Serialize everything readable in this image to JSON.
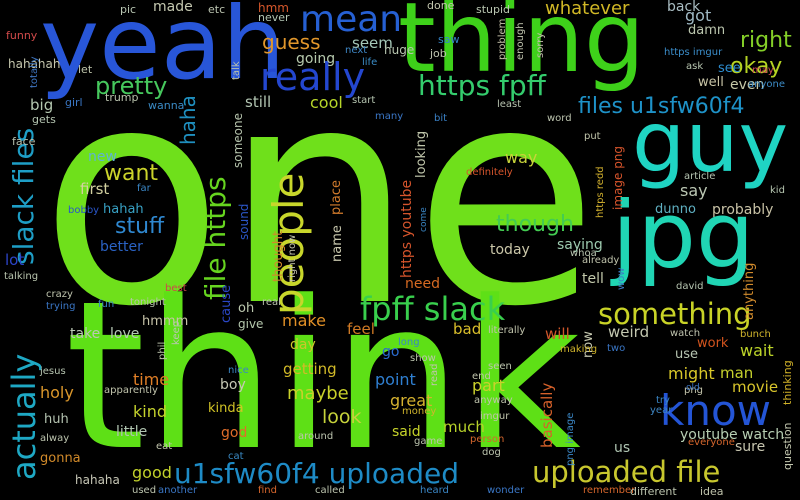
{
  "wordcloud": {
    "words": [
      {
        "text": "one",
        "color": "#6fe01b"
      },
      {
        "text": "think",
        "color": "#5ee016"
      },
      {
        "text": "thing",
        "color": "#3ed11a"
      },
      {
        "text": "yeah",
        "color": "#2856d8"
      },
      {
        "text": "guy",
        "color": "#1fd4c3"
      },
      {
        "text": "jpg",
        "color": "#20d5b4"
      },
      {
        "text": "know",
        "color": "#2455d6"
      },
      {
        "text": "mean",
        "color": "#2660d3"
      },
      {
        "text": "really",
        "color": "#2447d0"
      },
      {
        "text": "people",
        "color": "#c8d62b"
      },
      {
        "text": "actually",
        "color": "#1ea8c4"
      },
      {
        "text": "slack files",
        "color": "#1e9ec6"
      },
      {
        "text": "file https",
        "color": "#66d41f"
      },
      {
        "text": "fpff slack",
        "color": "#39cf4d"
      },
      {
        "text": "something",
        "color": "#c9d327"
      },
      {
        "text": "uploaded file",
        "color": "#c8c72e"
      },
      {
        "text": "u1sfw60f4 uploaded",
        "color": "#1e8bc6"
      },
      {
        "text": "https fpff",
        "color": "#34cc6d"
      },
      {
        "text": "files u1sfw60f4",
        "color": "#1e92c8"
      },
      {
        "text": "pretty",
        "color": "#46c85d"
      },
      {
        "text": "okay",
        "color": "#b6d423"
      },
      {
        "text": "right",
        "color": "#84cf28"
      },
      {
        "text": "guess",
        "color": "#e0962b"
      },
      {
        "text": "want",
        "color": "#cbd32b"
      },
      {
        "text": "stuff",
        "color": "#2f88d0"
      },
      {
        "text": "though",
        "color": "#43cc52"
      },
      {
        "text": "haha",
        "color": "#1f8fbf"
      },
      {
        "text": "whatever",
        "color": "#d1b826"
      },
      {
        "text": "got",
        "color": "#9fb9c4"
      },
      {
        "text": "made",
        "color": "#c4c8b0"
      },
      {
        "text": "seem",
        "color": "#a5c8b8"
      },
      {
        "text": "going",
        "color": "#b6c9ad"
      },
      {
        "text": "cool",
        "color": "#b7d62a"
      },
      {
        "text": "still",
        "color": "#b2c5b2"
      },
      {
        "text": "big",
        "color": "#b4c7b0"
      },
      {
        "text": "new",
        "color": "#5fb4d0"
      },
      {
        "text": "first",
        "color": "#d3d1a0"
      },
      {
        "text": "hahah",
        "color": "#38a1c4"
      },
      {
        "text": "better",
        "color": "#2a62c3"
      },
      {
        "text": "lot",
        "color": "#2c45c8"
      },
      {
        "text": "say",
        "color": "#bbc7b3"
      },
      {
        "text": "way",
        "color": "#c7d43a"
      },
      {
        "text": "probably",
        "color": "#c8c2a6"
      },
      {
        "text": "dunno",
        "color": "#5fb0c2"
      },
      {
        "text": "saying",
        "color": "#9dcbb0"
      },
      {
        "text": "today",
        "color": "#cbc7a9"
      },
      {
        "text": "tell",
        "color": "#c2c8aa"
      },
      {
        "text": "wait",
        "color": "#bcd429"
      },
      {
        "text": "might",
        "color": "#d9c829"
      },
      {
        "text": "man",
        "color": "#c5d02d"
      },
      {
        "text": "movie",
        "color": "#d8c52c"
      },
      {
        "text": "use",
        "color": "#b8c6b3"
      },
      {
        "text": "work",
        "color": "#d3541e"
      },
      {
        "text": "weird",
        "color": "#c3c7b0"
      },
      {
        "text": "make",
        "color": "#e08f26"
      },
      {
        "text": "need",
        "color": "#d66a22"
      },
      {
        "text": "feel",
        "color": "#d07a24"
      },
      {
        "text": "bad",
        "color": "#d8be2b"
      },
      {
        "text": "will",
        "color": "#d1562a"
      },
      {
        "text": "maybe",
        "color": "#c8d02a"
      },
      {
        "text": "getting",
        "color": "#d2ba28"
      },
      {
        "text": "point",
        "color": "#2f7fd1"
      },
      {
        "text": "look",
        "color": "#c6d33b"
      },
      {
        "text": "great",
        "color": "#d6b22f"
      },
      {
        "text": "part",
        "color": "#cbd12c"
      },
      {
        "text": "said",
        "color": "#c6d32a"
      },
      {
        "text": "much",
        "color": "#b7d12a"
      },
      {
        "text": "day",
        "color": "#cdc52c"
      },
      {
        "text": "go",
        "color": "#2a6bd0"
      },
      {
        "text": "take",
        "color": "#bac7b4"
      },
      {
        "text": "love",
        "color": "#b5c9b3"
      },
      {
        "text": "hmmm",
        "color": "#c7c4a9"
      },
      {
        "text": "time",
        "color": "#e07f27"
      },
      {
        "text": "kind",
        "color": "#c4d12c"
      },
      {
        "text": "little",
        "color": "#b0c4b0"
      },
      {
        "text": "kinda",
        "color": "#d2c426"
      },
      {
        "text": "god",
        "color": "#e06d2a"
      },
      {
        "text": "boy",
        "color": "#c6c8b4"
      },
      {
        "text": "good",
        "color": "#c2d12b"
      },
      {
        "text": "hahaha",
        "color": "#c7c7b6"
      },
      {
        "text": "gonna",
        "color": "#d18a2a"
      },
      {
        "text": "huh",
        "color": "#b4c3b0"
      },
      {
        "text": "holy",
        "color": "#d9962b"
      },
      {
        "text": "us",
        "color": "#b0c6b3"
      },
      {
        "text": "youtube watch",
        "color": "#b7cfb3"
      },
      {
        "text": "sure",
        "color": "#c7c6b0"
      },
      {
        "text": "give",
        "color": "#b6c9ae"
      },
      {
        "text": "oh",
        "color": "#bcc8ae"
      },
      {
        "text": "hahahah",
        "color": "#c5c6ad"
      },
      {
        "text": "back",
        "color": "#a9bdc2"
      },
      {
        "text": "damn",
        "color": "#bbc6ae"
      },
      {
        "text": "even",
        "color": "#c6c9a8"
      },
      {
        "text": "see",
        "color": "#2c8dd0"
      },
      {
        "text": "well",
        "color": "#c8c4a6"
      },
      {
        "text": "https youtube",
        "color": "#d6552c"
      },
      {
        "text": "basically",
        "color": "#d6612a"
      },
      {
        "text": "anything",
        "color": "#d08a2c"
      },
      {
        "text": "sound",
        "color": "#2b56c8"
      },
      {
        "text": "thought",
        "color": "#d08a2c"
      },
      {
        "text": "cause",
        "color": "#2a47c7"
      },
      {
        "text": "someone",
        "color": "#b6c4ad"
      },
      {
        "text": "place",
        "color": "#d27b2c"
      },
      {
        "text": "name",
        "color": "#c8c7ad"
      },
      {
        "text": "now",
        "color": "#c5c7af"
      },
      {
        "text": "image png",
        "color": "#d8552c"
      },
      {
        "text": "looking",
        "color": "#c0c6ab"
      },
      {
        "text": "question",
        "color": "#c4c8b0"
      },
      {
        "text": "thinking",
        "color": "#d0b128"
      },
      {
        "text": "hmm",
        "color": "#d6572b"
      },
      {
        "text": "never",
        "color": "#b3c6b4"
      },
      {
        "text": "funny",
        "color": "#d04a4a"
      },
      {
        "text": "totally",
        "color": "#3f76c2"
      },
      {
        "text": "let",
        "color": "#c0c6ac"
      },
      {
        "text": "girl",
        "color": "#3a77c5"
      },
      {
        "text": "gets",
        "color": "#b5c5b1"
      },
      {
        "text": "face",
        "color": "#b8c3b0"
      },
      {
        "text": "trump",
        "color": "#b9c2ad"
      },
      {
        "text": "wanna",
        "color": "#3a8ac5"
      },
      {
        "text": "pic",
        "color": "#b7c5b1"
      },
      {
        "text": "etc",
        "color": "#bbc4b0"
      },
      {
        "text": "done",
        "color": "#c2c6ae"
      },
      {
        "text": "stupid",
        "color": "#b9c6b1"
      },
      {
        "text": "saw",
        "color": "#3584c8"
      },
      {
        "text": "problem",
        "color": "#c4c0a8"
      },
      {
        "text": "enough",
        "color": "#c0c4ae"
      },
      {
        "text": "sorry",
        "color": "#c5c0ae"
      },
      {
        "text": "huge",
        "color": "#b8c6b0"
      },
      {
        "text": "job",
        "color": "#bdc4af"
      },
      {
        "text": "next",
        "color": "#3e86c4"
      },
      {
        "text": "life",
        "color": "#3a8bc5"
      },
      {
        "text": "talk",
        "color": "#b9c3ae"
      },
      {
        "text": "https imgur",
        "color": "#3b8ecb"
      },
      {
        "text": "ask",
        "color": "#b8c6b0"
      },
      {
        "text": "may",
        "color": "#cc4a58"
      },
      {
        "text": "anyone",
        "color": "#3c8bc6"
      },
      {
        "text": "start",
        "color": "#b5c5b0"
      },
      {
        "text": "least",
        "color": "#b8c3b0"
      },
      {
        "text": "many",
        "color": "#3a76c6"
      },
      {
        "text": "bit",
        "color": "#3a80c5"
      },
      {
        "text": "word",
        "color": "#bcc4ae"
      },
      {
        "text": "put",
        "color": "#c1c5ab"
      },
      {
        "text": "https redd",
        "color": "#d1b02e"
      },
      {
        "text": "article",
        "color": "#b7c5b2"
      },
      {
        "text": "kid",
        "color": "#b6c6b0"
      },
      {
        "text": "definitely",
        "color": "#d6552c"
      },
      {
        "text": "bobby",
        "color": "#2a56c9"
      },
      {
        "text": "far",
        "color": "#3a86c5"
      },
      {
        "text": "come",
        "color": "#3a86c5"
      },
      {
        "text": "whoa",
        "color": "#b9c6b1"
      },
      {
        "text": "already",
        "color": "#c0c4ac"
      },
      {
        "text": "wow",
        "color": "#3d7dc6"
      },
      {
        "text": "david",
        "color": "#b7c6b1"
      },
      {
        "text": "bunch",
        "color": "#d0b42c"
      },
      {
        "text": "watch",
        "color": "#c0c4af"
      },
      {
        "text": "png",
        "color": "#c4c5ac"
      },
      {
        "text": "old",
        "color": "#3a76c5"
      },
      {
        "text": "try",
        "color": "#3a86c5"
      },
      {
        "text": "year",
        "color": "#3e86c4"
      },
      {
        "text": "everyone",
        "color": "#d6662c"
      },
      {
        "text": "talking",
        "color": "#b9c5ae"
      },
      {
        "text": "crazy",
        "color": "#bfc4ad"
      },
      {
        "text": "fun",
        "color": "#3a86c5"
      },
      {
        "text": "trying",
        "color": "#3a76c5"
      },
      {
        "text": "tonight",
        "color": "#b9c4ae"
      },
      {
        "text": "best",
        "color": "#cc4a4a"
      },
      {
        "text": "real",
        "color": "#bbc4ae"
      },
      {
        "text": "right now",
        "color": "#c5c6ae"
      },
      {
        "text": "phil",
        "color": "#bcc3ad"
      },
      {
        "text": "keep",
        "color": "#b8c6b0"
      },
      {
        "text": "jesus",
        "color": "#b7c5b1"
      },
      {
        "text": "apparently",
        "color": "#c1c4ac"
      },
      {
        "text": "alway",
        "color": "#bcc4ae"
      },
      {
        "text": "eat",
        "color": "#c1c5ad"
      },
      {
        "text": "nice",
        "color": "#3a86c5"
      },
      {
        "text": "cat",
        "color": "#3a8ac5"
      },
      {
        "text": "long",
        "color": "#3a86c5"
      },
      {
        "text": "show",
        "color": "#bcc4ae"
      },
      {
        "text": "read",
        "color": "#c1c4ad"
      },
      {
        "text": "making",
        "color": "#d0b42c"
      },
      {
        "text": "two",
        "color": "#3a76c5"
      },
      {
        "text": "literally",
        "color": "#c1c4ac"
      },
      {
        "text": "seen",
        "color": "#bcc4ae"
      },
      {
        "text": "end",
        "color": "#c0c4ac"
      },
      {
        "text": "anyway",
        "color": "#bfc4ad"
      },
      {
        "text": "imgur",
        "color": "#c0c4ac"
      },
      {
        "text": "money",
        "color": "#d0b42c"
      },
      {
        "text": "around",
        "color": "#bcc4ae"
      },
      {
        "text": "game",
        "color": "#bcc4ae"
      },
      {
        "text": "person",
        "color": "#d6662c"
      },
      {
        "text": "dog",
        "color": "#bcc4ae"
      },
      {
        "text": "png image",
        "color": "#3a86c5"
      },
      {
        "text": "another",
        "color": "#3a76c5"
      },
      {
        "text": "used",
        "color": "#bcc4ae"
      },
      {
        "text": "find",
        "color": "#d6662c"
      },
      {
        "text": "called",
        "color": "#bcc4ae"
      },
      {
        "text": "heard",
        "color": "#3a86c5"
      },
      {
        "text": "wonder",
        "color": "#3a76c5"
      },
      {
        "text": "remember",
        "color": "#d6662c"
      },
      {
        "text": "different",
        "color": "#bcc4ae"
      },
      {
        "text": "idea",
        "color": "#c0c4ac"
      }
    ]
  }
}
